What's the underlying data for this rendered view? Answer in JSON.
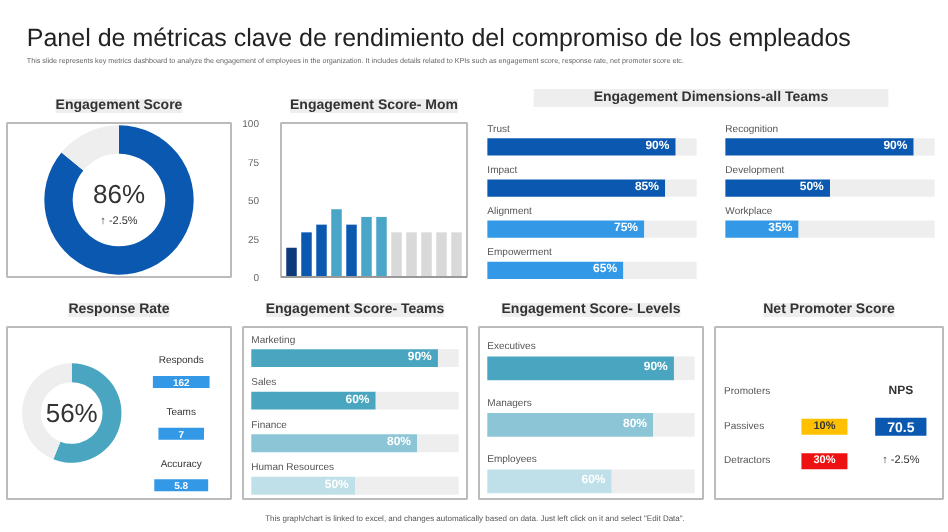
{
  "chart_data": [
    {
      "type": "other",
      "title": "Panel de métricas clave de rendimiento del compromiso de los empleados",
      "subtitle": "This slide represents key metrics dashboard to analyze the engagement of employees in the organization. It includes details related to KPIs such as engagement score, response rate, net promoter score etc.",
      "annotations": [
        "This graph/chart is linked to excel, and changes automatically based on data. Just left click on it and select \"Edit Data\"."
      ]
    },
    {
      "type": "donut",
      "title": "Engagement Score",
      "categories": [
        null,
        null
      ],
      "values": [
        86,
        14
      ],
      "colors": [
        "#0a58b0",
        "#eeeeee"
      ],
      "annotations": [
        "86%",
        "↑ -2.5%"
      ]
    },
    {
      "type": "bar",
      "title": "Engagement Score- Mom",
      "categories": [
        null,
        null,
        null,
        null,
        null,
        null,
        null,
        null,
        null,
        null,
        null,
        null
      ],
      "values": [
        19,
        29,
        34,
        44,
        34,
        39,
        39,
        29,
        29,
        29,
        29,
        29
      ],
      "colors": [
        "#0d3a7a",
        "#0a58b0",
        "#0a58b0",
        "#4aa6c8",
        "#0a58b0",
        "#4aa6c8",
        "#4aa6c8",
        "#d9d9d9",
        "#d9d9d9",
        "#d9d9d9",
        "#d9d9d9",
        "#d9d9d9"
      ],
      "ylim": [
        0,
        100
      ],
      "yticks": [
        0,
        25,
        50,
        75,
        100
      ]
    },
    {
      "type": "bar",
      "orientation": "horizontal",
      "stacked": true,
      "title": "Engagement Dimensions-all Teams",
      "categories": [
        "Trust",
        "Impact",
        "Alignment",
        "Empowerment"
      ],
      "xlim": [
        0,
        100
      ],
      "tick_labels": false,
      "series": [
        {
          "values": [
            90,
            85,
            75,
            65
          ],
          "colors": [
            "#0a58b0",
            "#0a58b0",
            "#3399e6",
            "#3399e6"
          ],
          "value_labels": [
            "90%",
            "85%",
            "75%",
            "65%"
          ]
        },
        {
          "values": [
            10,
            15,
            25,
            35
          ],
          "color": "#eeeeee"
        }
      ]
    },
    {
      "type": "bar",
      "orientation": "horizontal",
      "stacked": true,
      "categories": [
        "Recognition",
        "Development",
        "Workplace"
      ],
      "xlim": [
        0,
        100
      ],
      "tick_labels": false,
      "series": [
        {
          "values": [
            90,
            50,
            35
          ],
          "colors": [
            "#0a58b0",
            "#0a58b0",
            "#3399e6"
          ],
          "value_labels": [
            "90%",
            "50%",
            "35%"
          ]
        },
        {
          "values": [
            10,
            50,
            65
          ],
          "color": "#eeeeee"
        }
      ]
    },
    {
      "type": "donut",
      "title": "Response Rate",
      "categories": [
        null,
        null
      ],
      "values": [
        56,
        44
      ],
      "colors": [
        "#4aa6c0",
        "#eeeeee"
      ],
      "annotations": [
        "56%",
        "Responds",
        "162",
        "Teams",
        "7",
        "Accuracy",
        "5.8"
      ]
    },
    {
      "type": "bar",
      "orientation": "horizontal",
      "stacked": true,
      "title": "Engagement Score- Teams",
      "categories": [
        "Marketing",
        "Sales",
        "Finance",
        "Human Resources"
      ],
      "xlim": [
        0,
        100
      ],
      "tick_labels": false,
      "series": [
        {
          "values": [
            90,
            60,
            80,
            50
          ],
          "colors": [
            "#4aa6c0",
            "#4aa6c0",
            "#8cc6d6",
            "#bfe0e8"
          ],
          "value_labels": [
            "90%",
            "60%",
            "80%",
            "50%"
          ]
        },
        {
          "values": [
            10,
            40,
            20,
            50
          ],
          "color": "#eeeeee"
        }
      ]
    },
    {
      "type": "bar",
      "orientation": "horizontal",
      "stacked": true,
      "title": "Engagement Score- Levels",
      "categories": [
        "Executives",
        "Managers",
        "Employees"
      ],
      "xlim": [
        0,
        100
      ],
      "tick_labels": false,
      "series": [
        {
          "values": [
            90,
            80,
            60
          ],
          "colors": [
            "#4aa6c0",
            "#8cc6d6",
            "#bfe0e8"
          ],
          "value_labels": [
            "90%",
            "80%",
            "60%"
          ]
        },
        {
          "values": [
            10,
            20,
            40
          ],
          "color": "#eeeeee"
        }
      ]
    },
    {
      "type": "other",
      "title": "Net Promoter Score",
      "categories": [
        "Promoters",
        "Passives",
        "Detractors"
      ],
      "value_labels": [
        null,
        "10%",
        "30%"
      ],
      "colors": [
        "#1aab4a",
        "#ffc000",
        "#ee1111"
      ],
      "annotations": [
        "NPS",
        "70.5",
        "↑ -2.5%"
      ]
    }
  ]
}
